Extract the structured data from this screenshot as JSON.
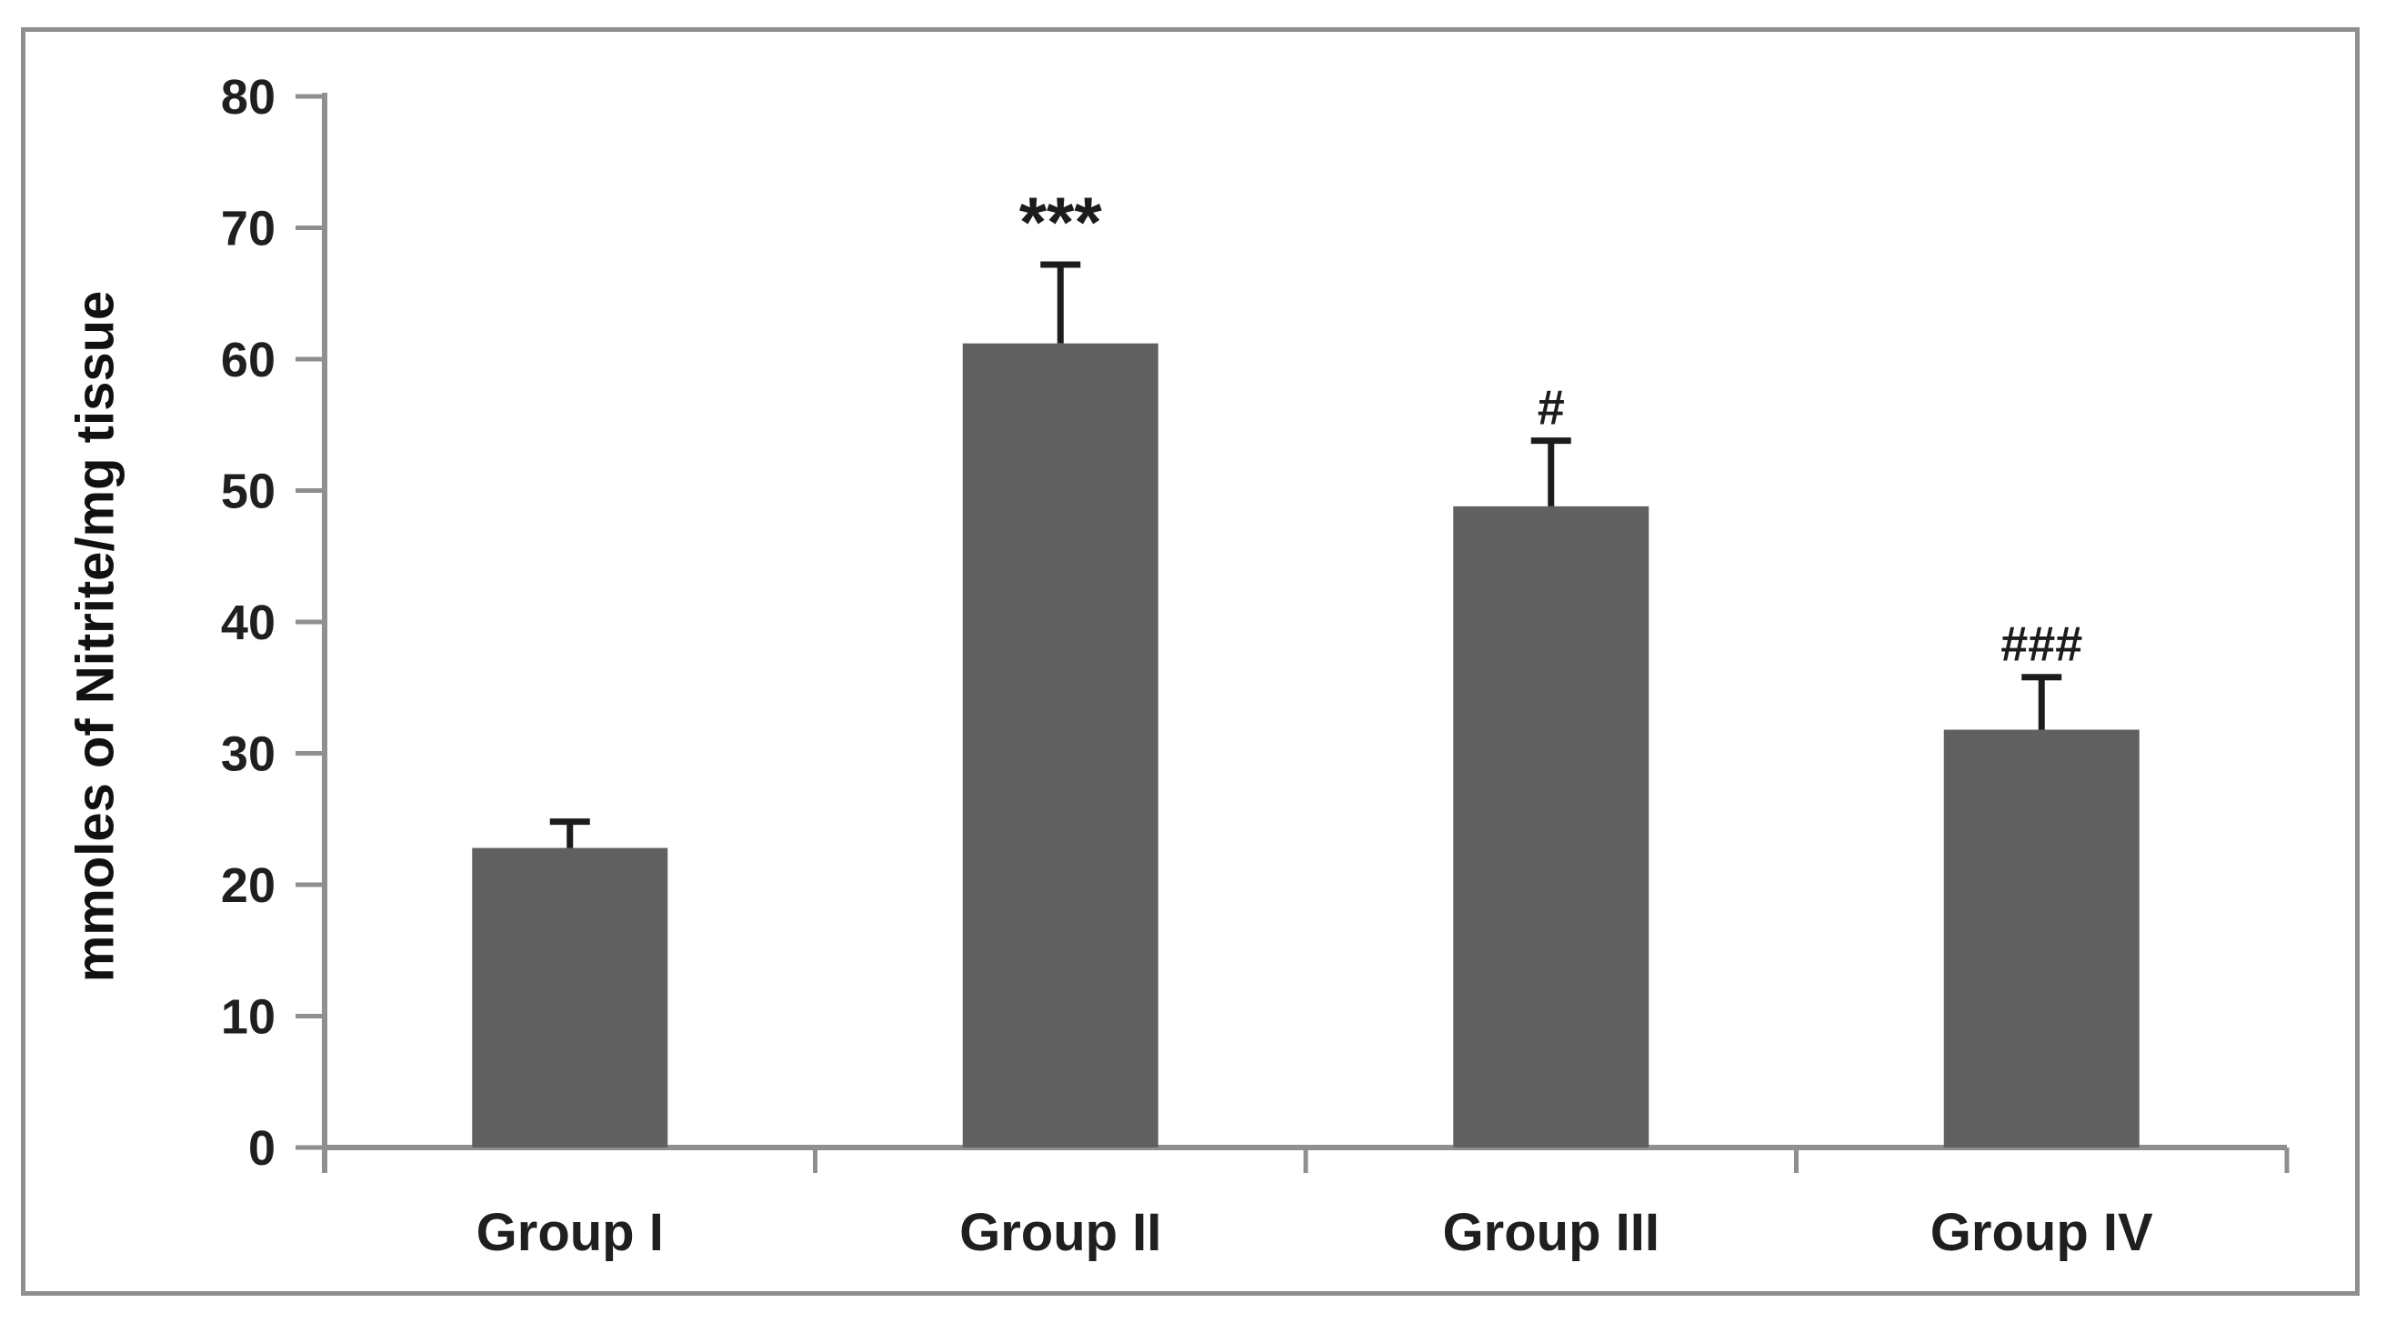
{
  "chart_data": {
    "type": "bar",
    "title": "",
    "xlabel": "",
    "ylabel": "mmoles of Nitrite/mg tissue",
    "categories": [
      "Group I",
      "Group II",
      "Group III",
      "Group IV"
    ],
    "values": [
      22.8,
      61.2,
      48.8,
      31.8
    ],
    "error_plus": [
      2.0,
      6.0,
      5.0,
      4.0
    ],
    "annotations": [
      "",
      "***",
      "#",
      "###"
    ],
    "yticks": [
      0,
      10,
      20,
      30,
      40,
      50,
      60,
      70,
      80
    ],
    "ylim": [
      0,
      80
    ],
    "ytick_step": 10,
    "grid": false,
    "legend": "none",
    "bar_color": "#606060",
    "axis_color": "#8f8f8f",
    "text_color": "#1f1f1f",
    "error_bar_color": "#1c1c1c",
    "frame_color": "#8f8f8f"
  }
}
